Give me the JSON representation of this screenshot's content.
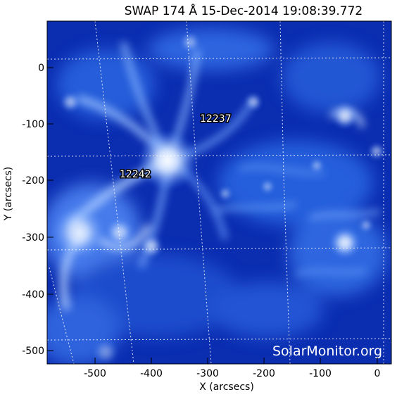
{
  "image": {
    "title": "SWAP 174 Å 15-Dec-2014 19:08:39.772",
    "xlabel": "X (arcsecs)",
    "ylabel": "Y (arcsecs)",
    "x_ticks": [
      "-500",
      "-400",
      "-300",
      "-200",
      "-100",
      "0"
    ],
    "y_ticks": [
      "0",
      "-100",
      "-200",
      "-300",
      "-400",
      "-500"
    ],
    "regions": [
      {
        "label": "12237"
      },
      {
        "label": "12242"
      }
    ],
    "watermark": "SolarMonitor.org",
    "colors": {
      "background": "#0a2aa8",
      "corona_bright": "#ffffff",
      "grid": "#ffffff"
    }
  }
}
